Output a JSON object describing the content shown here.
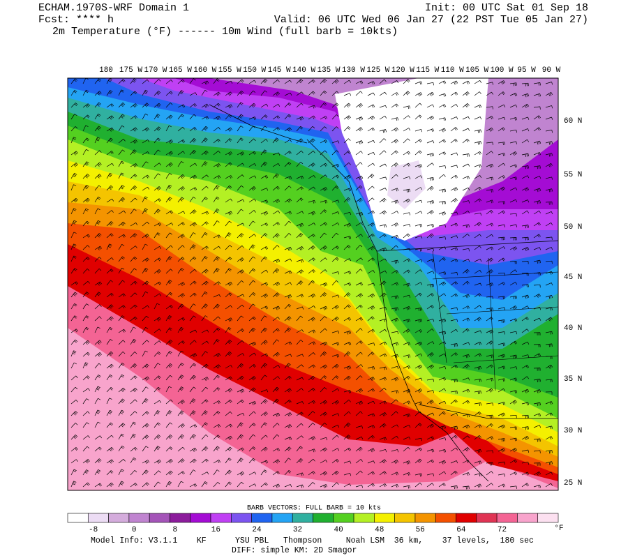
{
  "header": {
    "left": [
      "ECHAM.1970S-WRF Domain 1",
      "Fcst: **** h"
    ],
    "right": [
      "Init: 00 UTC Sat 01 Sep 18",
      "Valid: 06 UTC Wed 06 Jan 27 (22 PST Tue 05 Jan 27)"
    ],
    "fields": "2m Temperature (°F) ------ 10m Wind (full barb = 10kts)"
  },
  "map": {
    "lon_labels": [
      "180",
      "175 W",
      "170 W",
      "165 W",
      "160 W",
      "155 W",
      "150 W",
      "145 W",
      "140 W",
      "135 W",
      "130 W",
      "125 W",
      "120 W",
      "115 W",
      "110 W",
      "105 W",
      "100 W",
      "95 W",
      "90 W"
    ],
    "lat_labels": [
      "60 N",
      "55 N",
      "50 N",
      "45 N",
      "40 N",
      "35 N",
      "30 N",
      "25 N"
    ]
  },
  "legend": {
    "title": "BARB VECTORS:  FULL BARB = 10 kts",
    "colors": [
      "#ffffff",
      "#ecdcf4",
      "#d4acdc",
      "#c084d0",
      "#a454b8",
      "#8c1c9c",
      "#a40cd4",
      "#c040f4",
      "#7c54f0",
      "#2064f0",
      "#24a4f4",
      "#30b0a0",
      "#20b030",
      "#54d020",
      "#b4f024",
      "#f4f000",
      "#f4c400",
      "#f49400",
      "#f45000",
      "#e00000",
      "#e03454",
      "#f46494",
      "#f8a4cc",
      "#fce0f0"
    ],
    "labels": [
      -8,
      0,
      8,
      16,
      24,
      32,
      40,
      48,
      56,
      64,
      72
    ],
    "unit": "°F"
  },
  "footer": [
    "Model Info: V3.1.1    KF      YSU PBL   Thompson     Noah LSM  36 km,    37 levels,  180 sec",
    "DIFF: simple KM: 2D Smagor"
  ]
}
